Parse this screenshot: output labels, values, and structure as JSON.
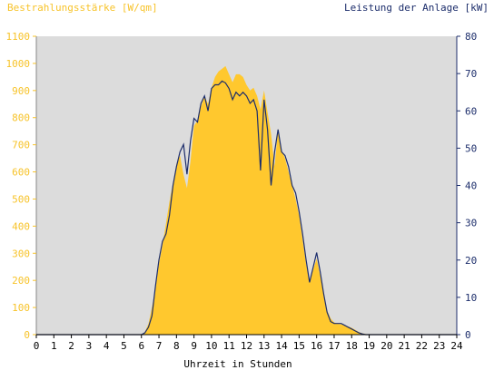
{
  "chart_data": {
    "type": "area",
    "title_left": "Bestrahlungsstärke [W/qm]",
    "title_right": "Leistung der Anlage [kW]",
    "xlabel": "Uhrzeit in Stunden",
    "x_ticks": [
      "0",
      "1",
      "2",
      "3",
      "4",
      "5",
      "6",
      "7",
      "8",
      "9",
      "10",
      "11",
      "12",
      "13",
      "14",
      "15",
      "16",
      "17",
      "18",
      "19",
      "20",
      "21",
      "22",
      "23",
      "24"
    ],
    "xlim": [
      0,
      24
    ],
    "ylim_left": [
      0,
      1100
    ],
    "ylim_right": [
      0,
      80
    ],
    "y_ticks_left": [
      "0",
      "100",
      "200",
      "300",
      "400",
      "500",
      "600",
      "700",
      "800",
      "900",
      "1000",
      "1100"
    ],
    "y_ticks_right": [
      "0",
      "10",
      "20",
      "30",
      "40",
      "50",
      "60",
      "70",
      "80"
    ],
    "grid": false,
    "plot_background": "#dcdcdc",
    "series": [
      {
        "color": "#ffc82e",
        "axis": "left",
        "x": [
          0,
          6.0,
          6.2,
          6.4,
          6.6,
          6.8,
          7.0,
          7.2,
          7.4,
          7.6,
          7.8,
          8.0,
          8.2,
          8.4,
          8.6,
          8.8,
          9.0,
          9.2,
          9.4,
          9.6,
          9.8,
          10.0,
          10.2,
          10.4,
          10.6,
          10.8,
          11.0,
          11.2,
          11.4,
          11.6,
          11.8,
          12.0,
          12.2,
          12.4,
          12.6,
          12.8,
          13.0,
          13.2,
          13.4,
          13.6,
          13.8,
          14.0,
          14.2,
          14.4,
          14.6,
          14.8,
          15.0,
          15.2,
          15.4,
          15.6,
          15.8,
          16.0,
          16.2,
          16.4,
          16.6,
          16.8,
          17.0,
          17.2,
          17.4,
          17.6,
          17.8,
          18.0,
          18.2,
          18.4,
          18.6,
          18.8,
          19.0,
          24
        ],
        "y": [
          0,
          0,
          10,
          40,
          100,
          170,
          260,
          330,
          410,
          490,
          560,
          630,
          660,
          590,
          540,
          640,
          770,
          790,
          840,
          880,
          850,
          910,
          950,
          970,
          980,
          990,
          960,
          930,
          960,
          960,
          950,
          920,
          900,
          910,
          880,
          830,
          900,
          820,
          740,
          620,
          760,
          680,
          650,
          600,
          550,
          500,
          440,
          350,
          260,
          200,
          240,
          280,
          220,
          150,
          90,
          60,
          45,
          40,
          38,
          35,
          30,
          25,
          18,
          10,
          5,
          2,
          0,
          0
        ]
      },
      {
        "color": "#1c2d6b",
        "axis": "right",
        "x": [
          0,
          6.0,
          6.2,
          6.4,
          6.6,
          6.8,
          7.0,
          7.2,
          7.4,
          7.6,
          7.8,
          8.0,
          8.2,
          8.4,
          8.6,
          8.8,
          9.0,
          9.2,
          9.4,
          9.6,
          9.8,
          10.0,
          10.2,
          10.4,
          10.6,
          10.8,
          11.0,
          11.2,
          11.4,
          11.6,
          11.8,
          12.0,
          12.2,
          12.4,
          12.6,
          12.8,
          13.0,
          13.2,
          13.4,
          13.6,
          13.8,
          14.0,
          14.2,
          14.4,
          14.6,
          14.8,
          15.0,
          15.2,
          15.4,
          15.6,
          15.8,
          16.0,
          16.2,
          16.4,
          16.6,
          16.8,
          17.0,
          17.2,
          17.4,
          17.6,
          17.8,
          18.0,
          18.2,
          18.4,
          18.6,
          18.8,
          19.0,
          24
        ],
        "y": [
          0,
          0,
          0.5,
          2,
          5,
          13,
          20,
          25,
          27,
          32,
          40,
          45,
          49,
          51,
          43,
          52,
          58,
          57,
          62,
          64,
          60,
          66,
          67,
          67,
          68,
          67.5,
          66,
          63,
          65,
          64,
          65,
          64,
          62,
          63,
          60,
          44,
          63,
          55,
          40,
          49,
          55,
          49,
          48,
          45,
          40,
          38,
          33,
          27,
          20,
          14,
          18,
          22,
          17,
          11,
          6,
          3.5,
          3,
          3,
          3,
          2.5,
          2,
          1.5,
          1,
          0.5,
          0.2,
          0,
          0,
          0
        ]
      }
    ]
  }
}
